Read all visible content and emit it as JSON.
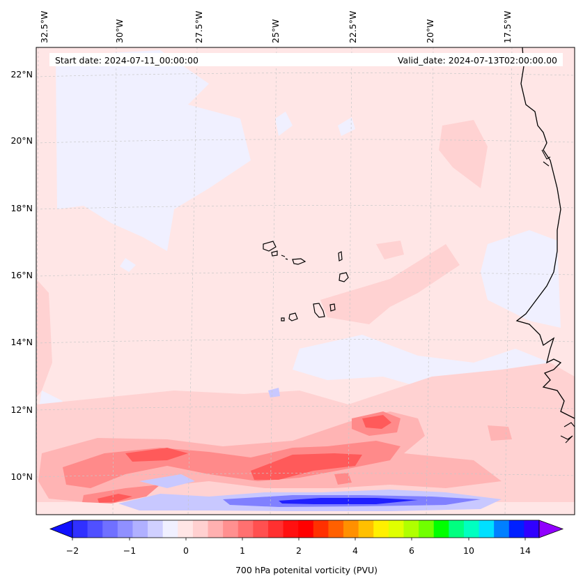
{
  "header": {
    "start_date": "Start date: 2024-07-11_00:00:00",
    "valid_date": "Valid_date: 2024-07-13T02:00:00.00"
  },
  "map": {
    "lon_labels": [
      "32.5°W",
      "30°W",
      "27.5°W",
      "25°W",
      "22.5°W",
      "20°W",
      "17.5°W"
    ],
    "lat_labels": [
      "22°N",
      "20°N",
      "18°N",
      "16°N",
      "14°N",
      "12°N",
      "10°N"
    ],
    "field": "700 hPa potential vorticity",
    "colors": {
      "background": "#ffe6e6",
      "light_blue": "#f0f0ff",
      "pink_1": "#ffd2d2",
      "pink_2": "#ffb4b4",
      "red_1": "#ff8a8a",
      "red_2": "#ff5a5a",
      "blue_1": "#c8c8ff",
      "blue_2": "#8080ff",
      "blue_3": "#2020ff",
      "coast": "#000000",
      "grid": "#c8c8c8"
    }
  },
  "colorbar": {
    "label": "700 hPa potenital vorticity (PVU)",
    "ticks": [
      "−2",
      "−1",
      "0",
      "1",
      "2",
      "4",
      "6",
      "10",
      "14"
    ],
    "colors": [
      "#1010ff",
      "#3030ff",
      "#5050ff",
      "#7070ff",
      "#9090ff",
      "#b0b0ff",
      "#d0d0ff",
      "#f0f0ff",
      "#ffe6e6",
      "#ffd0d0",
      "#ffb0b0",
      "#ff9090",
      "#ff7070",
      "#ff5050",
      "#ff3030",
      "#ff1010",
      "#ff0000",
      "#ff3000",
      "#ff6000",
      "#ff9000",
      "#ffc000",
      "#fff000",
      "#e0ff00",
      "#b0ff00",
      "#70ff00",
      "#00ff00",
      "#00ff80",
      "#00ffc0",
      "#00e0ff",
      "#0080ff",
      "#0020ff",
      "#3000ff",
      "#9000ff"
    ]
  }
}
